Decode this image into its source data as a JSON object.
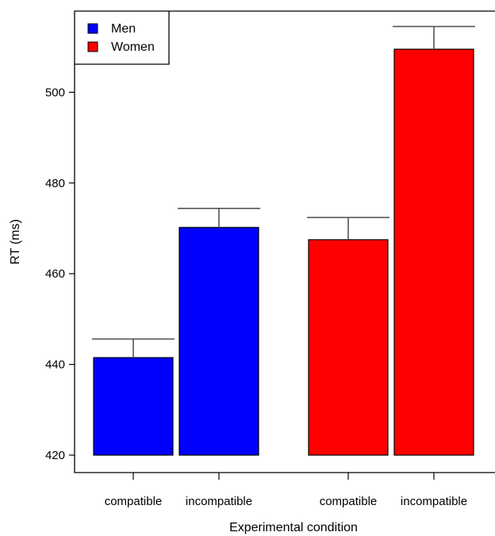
{
  "chart_data": {
    "type": "bar",
    "title": "",
    "xlabel": "Experimental condition",
    "ylabel": "RT (ms)",
    "ylim": [
      420,
      515
    ],
    "yticks": [
      420,
      440,
      460,
      480,
      500
    ],
    "grid": false,
    "legend_placement": "top-left",
    "groups": [
      {
        "name": "Men",
        "color": "#0000ff",
        "bars": [
          {
            "category": "compatible",
            "value": 441.5,
            "error": 4.1
          },
          {
            "category": "incompatible",
            "value": 470.2,
            "error": 4.2
          }
        ]
      },
      {
        "name": "Women",
        "color": "#ff0000",
        "bars": [
          {
            "category": "compatible",
            "value": 467.5,
            "error": 4.9
          },
          {
            "category": "incompatible",
            "value": 509.5,
            "error": 5.0
          }
        ]
      }
    ]
  }
}
